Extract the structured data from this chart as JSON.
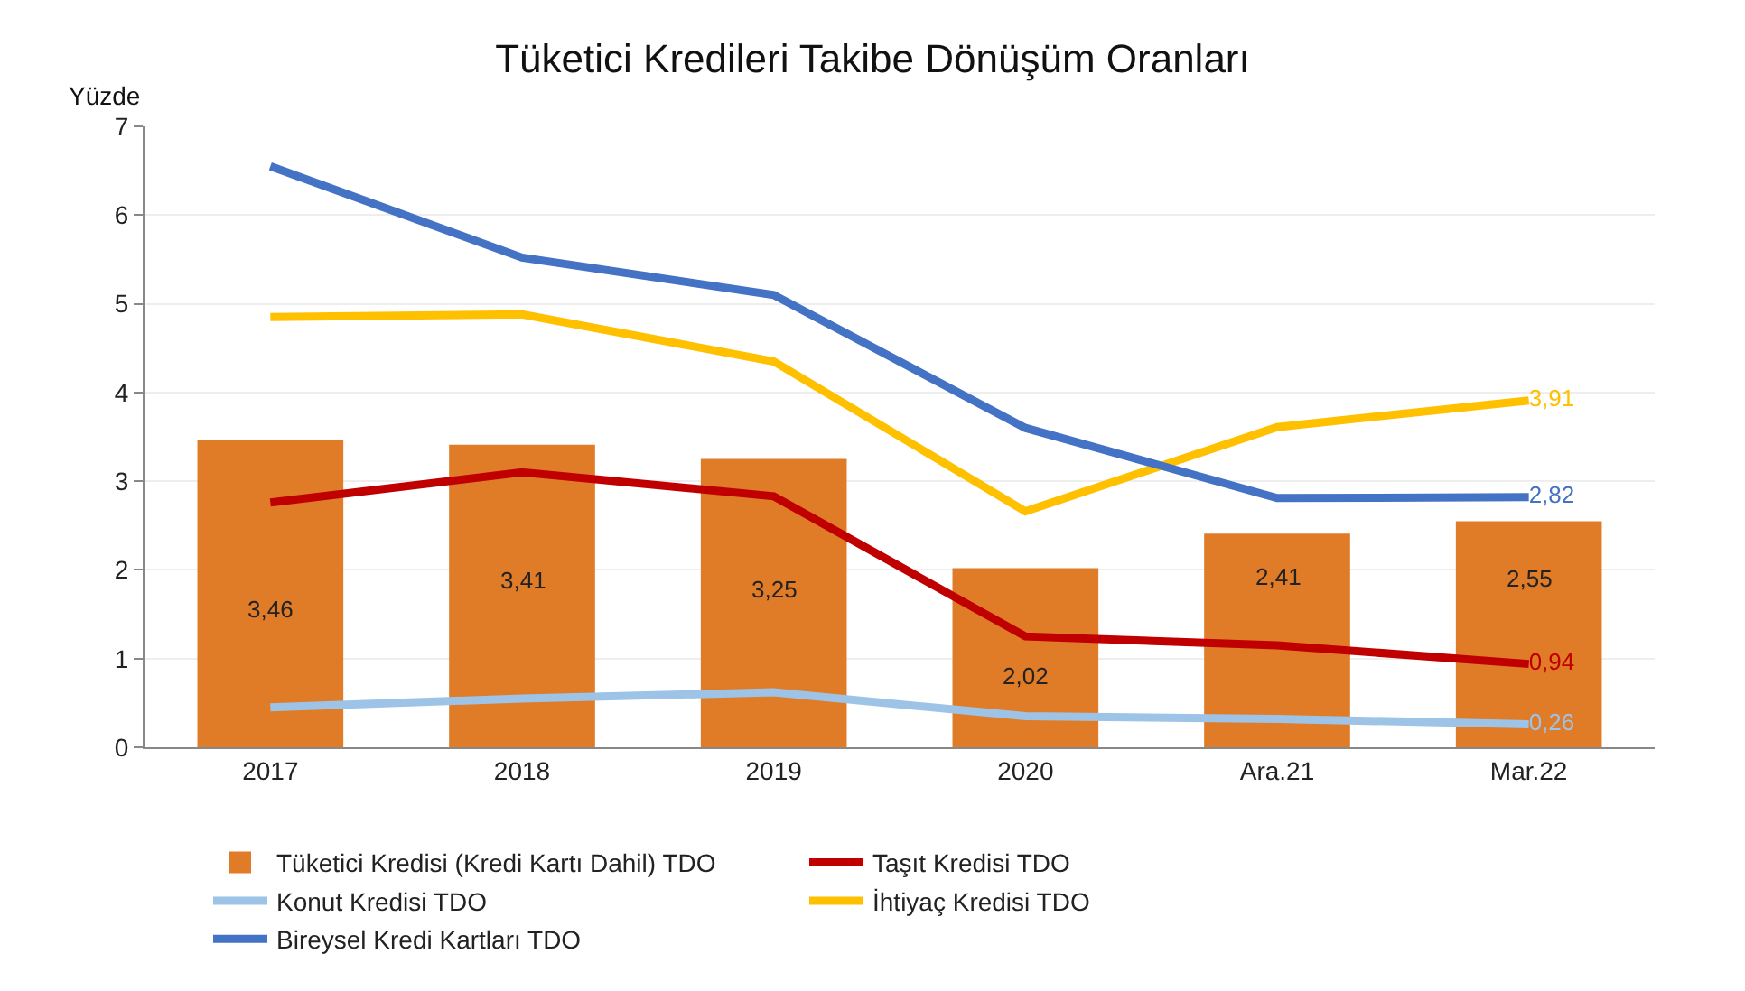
{
  "chart_data": {
    "type": "bar",
    "title": "Tüketici Kredileri Takibe Dönüşüm Oranları",
    "ylabel": "Yüzde",
    "categories": [
      "2017",
      "2018",
      "2019",
      "2020",
      "Ara.21",
      "Mar.22"
    ],
    "series": [
      {
        "name": "Tüketici Kredisi (Kredi Kartı Dahil) TDO",
        "color": "#e07b28",
        "values": [
          3.46,
          3.41,
          3.25,
          2.02,
          2.41,
          2.55
        ],
        "value_labels": [
          "3,46",
          "3,41",
          "3,25",
          "2,02",
          "2,41",
          "2,55"
        ]
      },
      {
        "name": "Taşıt Kredisi TDO",
        "type": "line",
        "color": "#c00000",
        "values": [
          2.76,
          3.1,
          2.83,
          1.25,
          1.15,
          0.94
        ],
        "value_labels": [
          null,
          null,
          null,
          null,
          null,
          "0,94"
        ]
      },
      {
        "name": "Konut Kredisi TDO",
        "type": "line",
        "color": "#9dc3e6",
        "values": [
          0.45,
          0.55,
          0.62,
          0.35,
          0.32,
          0.26
        ],
        "value_labels": [
          null,
          null,
          null,
          null,
          null,
          "0,26"
        ]
      },
      {
        "name": "İhtiyaç Kredisi TDO",
        "type": "line",
        "color": "#ffc000",
        "values": [
          4.85,
          4.88,
          4.35,
          2.66,
          3.61,
          3.91
        ],
        "value_labels": [
          null,
          null,
          null,
          null,
          null,
          "3,91"
        ]
      },
      {
        "name": "Bireysel Kredi Kartları TDO",
        "type": "line",
        "color": "#4472c4",
        "values": [
          6.55,
          5.52,
          5.1,
          3.6,
          2.81,
          2.82
        ],
        "value_labels": [
          null,
          null,
          null,
          null,
          null,
          "2,82"
        ]
      }
    ],
    "ylim": [
      0,
      7
    ],
    "yticks": [
      0,
      1,
      2,
      3,
      4,
      5,
      6,
      7
    ],
    "grid": "y",
    "legend": "bottom",
    "line_style": "solid",
    "marker": "none"
  }
}
